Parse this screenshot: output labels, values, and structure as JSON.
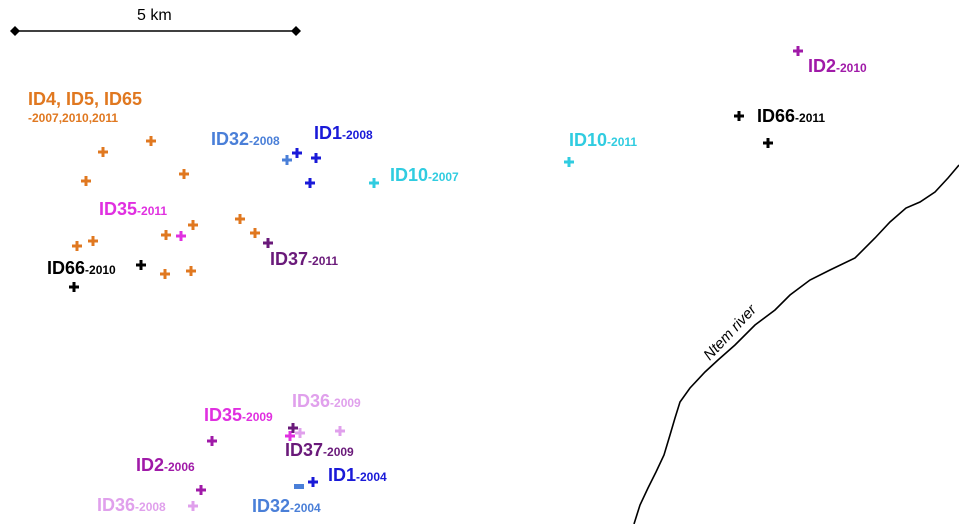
{
  "scale_bar": {
    "label": "5 km"
  },
  "river": {
    "label": "Ntem river"
  },
  "colors": {
    "orange": "#e07820",
    "royal": "#4a7fd8",
    "blue": "#1a1ad8",
    "cyan": "#30cce0",
    "purple": "#a01aa8",
    "black": "#000000",
    "magenta": "#e030e0",
    "darkpurple": "#6a1a7a",
    "pink": "#e0a0ec"
  },
  "labels": {
    "group_orange": {
      "ids": "ID4, ID5, ID65",
      "years": "-2007,2010,2011"
    },
    "id32_2008": {
      "id": "ID32",
      "year": "-2008"
    },
    "id1_2008": {
      "id": "ID1",
      "year": "-2008"
    },
    "id10_2007": {
      "id": "ID10",
      "year": "-2007"
    },
    "id10_2011": {
      "id": "ID10",
      "year": "-2011"
    },
    "id2_2010": {
      "id": "ID2",
      "year": "-2010"
    },
    "id66_2011": {
      "id": "ID66",
      "year": "-2011"
    },
    "id35_2011": {
      "id": "ID35",
      "year": "-2011"
    },
    "id37_2011": {
      "id": "ID37",
      "year": "-2011"
    },
    "id66_2010": {
      "id": "ID66",
      "year": "-2010"
    },
    "id36_2009": {
      "id": "ID36",
      "year": "-2009"
    },
    "id35_2009": {
      "id": "ID35",
      "year": "-2009"
    },
    "id37_2009": {
      "id": "ID37",
      "year": "-2009"
    },
    "id2_2006": {
      "id": "ID2",
      "year": "-2006"
    },
    "id1_2004": {
      "id": "ID1",
      "year": "-2004"
    },
    "id36_2008": {
      "id": "ID36",
      "year": "-2008"
    },
    "id32_2004": {
      "id": "ID32",
      "year": "-2004"
    }
  }
}
